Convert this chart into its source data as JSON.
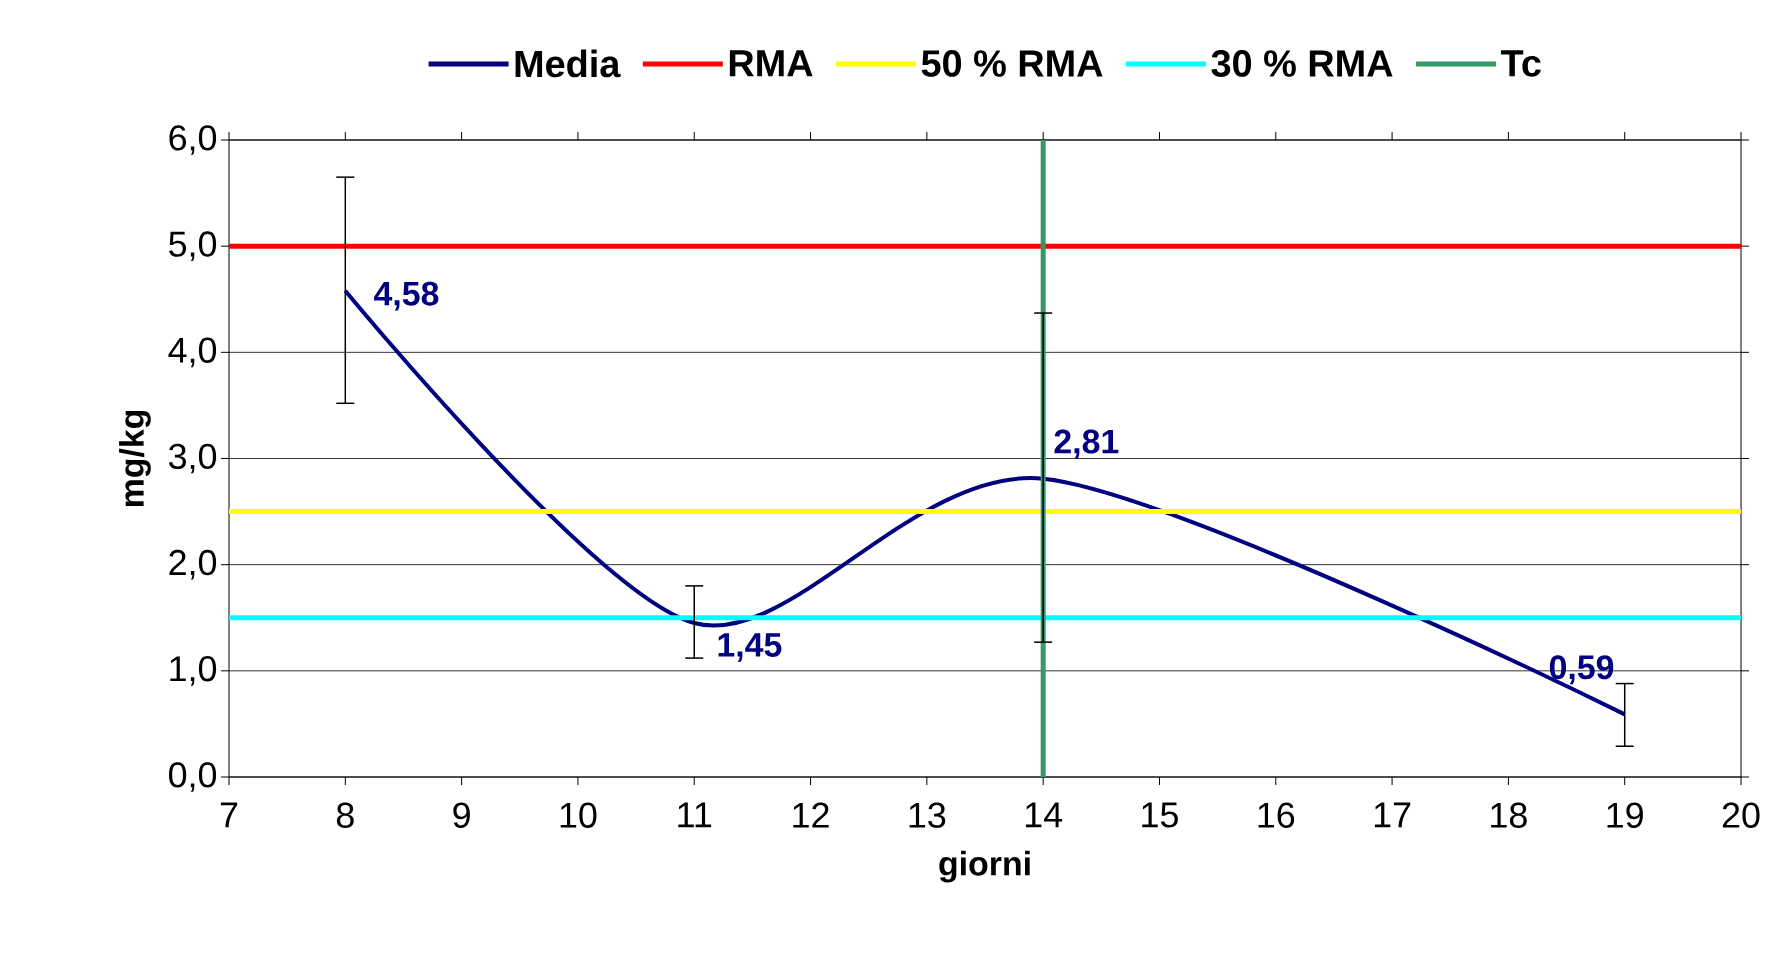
{
  "chart_data": {
    "type": "line",
    "xlabel": "giorni",
    "ylabel": "mg/kg",
    "x": [
      8,
      11,
      14,
      19
    ],
    "series": [
      {
        "name": "Media",
        "color": "#000080",
        "values": [
          4.58,
          1.45,
          2.81,
          0.59
        ],
        "errors": [
          [
            3.52,
            5.65
          ],
          [
            1.12,
            1.8
          ],
          [
            1.27,
            4.37
          ],
          [
            0.29,
            0.88
          ]
        ],
        "value_labels": [
          "4,58",
          "1,45",
          "2,81",
          "0,59"
        ]
      }
    ],
    "ref_lines": [
      {
        "axis": "y",
        "value": 5,
        "label": "RMA",
        "color": "#ff0000"
      },
      {
        "axis": "y",
        "value": 2.5,
        "label": "50 % RMA",
        "color": "#ffff00"
      },
      {
        "axis": "y",
        "value": 1.5,
        "label": "30 % RMA",
        "color": "#00ffff"
      },
      {
        "axis": "x",
        "value": 14,
        "label": "Tc",
        "color": "#339966"
      }
    ],
    "xlim": [
      7,
      20
    ],
    "xticks": [
      7,
      8,
      9,
      10,
      11,
      12,
      13,
      14,
      15,
      16,
      17,
      18,
      19,
      20
    ],
    "ylim": [
      0,
      6
    ],
    "yticks": [
      {
        "value": 0,
        "label": "0,0"
      },
      {
        "value": 1,
        "label": "1,0"
      },
      {
        "value": 2,
        "label": "2,0"
      },
      {
        "value": 3,
        "label": "3,0"
      },
      {
        "value": 4,
        "label": "4,0"
      },
      {
        "value": 5,
        "label": "5,0"
      },
      {
        "value": 6,
        "label": "6,0"
      }
    ],
    "grid": "y",
    "legend": "top",
    "marker": "none",
    "line_style": "solid"
  }
}
